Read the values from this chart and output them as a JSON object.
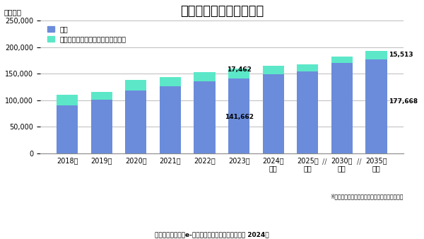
{
  "title": "国内の通販市場（物販）",
  "ylabel": "（億円）",
  "categories": [
    "2018年",
    "2019年",
    "2020年",
    "2021年",
    "2022年",
    "2023年",
    "2024年\n見込",
    "2025年\n予測",
    "2030年\n予測",
    "2035年\n予測"
  ],
  "ec_values": [
    91000,
    101000,
    119000,
    126000,
    136000,
    141662,
    149000,
    154000,
    171000,
    177668
  ],
  "catalog_values": [
    19000,
    15000,
    19000,
    18000,
    16500,
    17462,
    15500,
    14000,
    12000,
    15513
  ],
  "ec_color": "#6b8cda",
  "catalog_color": "#5ce8c8",
  "ec_label": "ＥＣ",
  "catalog_label": "カタログ、テレビ、ラジオ、その他",
  "annotate_2023_ec": "141,662",
  "annotate_2023_cat": "17,462",
  "annotate_2035_ec": "177,668",
  "annotate_2035_cat": "15,513",
  "ylim": [
    0,
    250000
  ],
  "yticks": [
    0,
    50000,
    100000,
    150000,
    200000,
    250000
  ],
  "source_text": "富士経済「通販・e-コマースビジネスの実態と今後 2024」",
  "note_text": "※調査対象の商品カテゴリーの市場を対象とした",
  "background_color": "#ffffff",
  "grid_color": "#bbbbbb",
  "title_fontsize": 13,
  "label_fontsize": 7.5,
  "tick_fontsize": 7,
  "annot_fontsize": 6.5,
  "legend_fontsize": 7
}
